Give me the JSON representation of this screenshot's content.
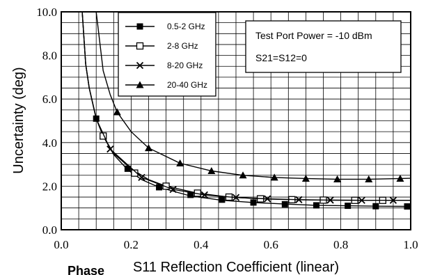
{
  "chart_data": {
    "type": "line",
    "title": "",
    "xlabel": "S11 Reflection Coefficient (linear)",
    "ylabel": "Uncertainty (deg)",
    "xlim": [
      0.0,
      1.0
    ],
    "ylim": [
      0.0,
      10.0
    ],
    "xticks": [
      0.0,
      0.2,
      0.4,
      0.6,
      0.8,
      1.0
    ],
    "xtick_labels": [
      "0.0",
      "0.2",
      "0.4",
      "0.6",
      "0.8",
      "1.0"
    ],
    "yticks": [
      0.0,
      2.0,
      4.0,
      6.0,
      8.0,
      10.0
    ],
    "ytick_labels": [
      "0.0",
      "2.0",
      "4.0",
      "6.0",
      "8.0",
      "10.0"
    ],
    "grid": true,
    "legend_position": "top-left",
    "series": [
      {
        "name": "0.5-2 GHz",
        "marker": "filled-square",
        "x": [
          0.06,
          0.07,
          0.08,
          0.1,
          0.12,
          0.15,
          0.19,
          0.23,
          0.28,
          0.37,
          0.46,
          0.55,
          0.64,
          0.73,
          0.82,
          0.91,
          1.0
        ],
        "y": [
          10.0,
          7.6,
          6.5,
          5.1,
          4.3,
          3.45,
          2.75,
          2.3,
          1.95,
          1.55,
          1.35,
          1.25,
          1.18,
          1.12,
          1.1,
          1.08,
          1.07
        ],
        "markers": {
          "x": [
            0.1,
            0.19,
            0.28,
            0.37,
            0.46,
            0.55,
            0.64,
            0.73,
            0.82,
            0.9,
            0.99
          ],
          "y": [
            5.1,
            2.8,
            1.95,
            1.6,
            1.38,
            1.25,
            1.17,
            1.12,
            1.1,
            1.08,
            1.07
          ]
        }
      },
      {
        "name": "2-8 GHz",
        "marker": "open-square",
        "x": [
          0.06,
          0.07,
          0.08,
          0.1,
          0.12,
          0.15,
          0.2,
          0.25,
          0.3,
          0.39,
          0.48,
          0.57,
          0.66,
          0.75,
          0.84,
          0.93,
          1.0
        ],
        "y": [
          10.0,
          7.6,
          6.5,
          5.1,
          4.3,
          3.5,
          2.8,
          2.3,
          2.0,
          1.68,
          1.5,
          1.42,
          1.38,
          1.36,
          1.35,
          1.35,
          1.35
        ],
        "markers": {
          "x": [
            0.12,
            0.21,
            0.3,
            0.39,
            0.48,
            0.57,
            0.66,
            0.75,
            0.84,
            0.92
          ],
          "y": [
            4.3,
            2.6,
            2.0,
            1.68,
            1.5,
            1.42,
            1.38,
            1.36,
            1.35,
            1.35
          ]
        }
      },
      {
        "name": "8-20 GHz",
        "marker": "x",
        "x": [
          0.06,
          0.07,
          0.08,
          0.1,
          0.14,
          0.23,
          0.32,
          0.41,
          0.5,
          0.59,
          0.68,
          0.77,
          0.86,
          0.95,
          1.0
        ],
        "y": [
          10.0,
          7.6,
          6.5,
          5.1,
          3.7,
          2.4,
          1.85,
          1.6,
          1.48,
          1.42,
          1.38,
          1.36,
          1.35,
          1.35,
          1.35
        ],
        "markers": {
          "x": [
            0.14,
            0.23,
            0.32,
            0.41,
            0.5,
            0.59,
            0.68,
            0.77,
            0.86,
            0.95
          ],
          "y": [
            3.7,
            2.4,
            1.85,
            1.6,
            1.48,
            1.42,
            1.38,
            1.36,
            1.35,
            1.35
          ]
        }
      },
      {
        "name": "20-40 GHz",
        "marker": "filled-triangle",
        "x": [
          0.1,
          0.12,
          0.14,
          0.16,
          0.2,
          0.25,
          0.34,
          0.43,
          0.52,
          0.61,
          0.7,
          0.79,
          0.88,
          0.97,
          1.0
        ],
        "y": [
          10.0,
          7.3,
          6.2,
          5.4,
          4.5,
          3.75,
          3.05,
          2.7,
          2.5,
          2.4,
          2.35,
          2.32,
          2.32,
          2.35,
          2.36
        ],
        "markers": {
          "x": [
            0.16,
            0.25,
            0.34,
            0.43,
            0.52,
            0.61,
            0.7,
            0.79,
            0.88,
            0.97
          ],
          "y": [
            5.4,
            3.75,
            3.05,
            2.7,
            2.5,
            2.4,
            2.35,
            2.32,
            2.32,
            2.35
          ]
        }
      }
    ],
    "annotations": [
      "Test Port Power = -10 dBm",
      "S21=S12=0"
    ]
  },
  "caption": "Phase"
}
